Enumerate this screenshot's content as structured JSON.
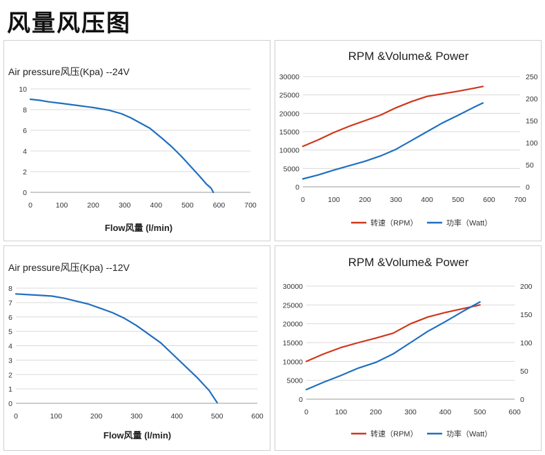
{
  "page_title": "风量风压图",
  "colors": {
    "rpm": "#d0361a",
    "power": "#1f6fc0",
    "grid": "#d9d9d9",
    "axis": "#999999"
  },
  "chart_data": [
    {
      "type": "line",
      "title": "Air pressure风压(Kpa)  --24V",
      "xlabel": "Flow风量  (l/min)",
      "xlim": [
        0,
        700
      ],
      "xticks": [
        0,
        100,
        200,
        300,
        400,
        500,
        600,
        700
      ],
      "ylim": [
        0,
        10
      ],
      "yticks": [
        0,
        2,
        4,
        6,
        8,
        10
      ],
      "series": [
        {
          "name": "Air pressure",
          "color": "#1f6fc0",
          "x": [
            0,
            30,
            60,
            100,
            150,
            200,
            250,
            290,
            320,
            350,
            380,
            400,
            420,
            450,
            480,
            510,
            540,
            560,
            575,
            582
          ],
          "y": [
            9.0,
            8.9,
            8.75,
            8.6,
            8.4,
            8.2,
            7.95,
            7.6,
            7.2,
            6.7,
            6.2,
            5.7,
            5.2,
            4.4,
            3.5,
            2.5,
            1.5,
            0.8,
            0.4,
            0.0
          ]
        }
      ]
    },
    {
      "type": "line",
      "title": "RPM &Volume& Power",
      "xlim": [
        0,
        700
      ],
      "xticks": [
        0,
        100,
        200,
        300,
        400,
        500,
        600,
        700
      ],
      "ylim": [
        0,
        30000
      ],
      "yticks": [
        0,
        5000,
        10000,
        15000,
        20000,
        25000,
        30000
      ],
      "y2lim": [
        0,
        250
      ],
      "y2ticks": [
        0,
        50,
        100,
        150,
        200,
        250
      ],
      "series": [
        {
          "name": "转速（RPM）",
          "color": "#d0361a",
          "axis": "left",
          "x": [
            0,
            50,
            100,
            150,
            200,
            250,
            300,
            350,
            400,
            450,
            500,
            550,
            580
          ],
          "y": [
            11000,
            12800,
            14800,
            16500,
            18000,
            19500,
            21500,
            23200,
            24600,
            25300,
            26000,
            26800,
            27300
          ]
        },
        {
          "name": "功率（Watt）",
          "color": "#1f6fc0",
          "axis": "right",
          "x": [
            0,
            50,
            100,
            150,
            200,
            250,
            300,
            350,
            400,
            450,
            500,
            550,
            580
          ],
          "y": [
            18,
            27,
            38,
            48,
            58,
            70,
            85,
            105,
            125,
            145,
            162,
            180,
            190
          ]
        }
      ]
    },
    {
      "type": "line",
      "title": "Air pressure风压(Kpa)  --12V",
      "xlabel": "Flow风量  (l/min)",
      "xlim": [
        0,
        600
      ],
      "xticks": [
        0,
        100,
        200,
        300,
        400,
        500,
        600
      ],
      "ylim": [
        0,
        8
      ],
      "yticks": [
        0,
        1,
        2,
        3,
        4,
        5,
        6,
        7,
        8
      ],
      "series": [
        {
          "name": "Air pressure",
          "color": "#1f6fc0",
          "x": [
            0,
            30,
            60,
            90,
            120,
            150,
            180,
            210,
            240,
            270,
            300,
            330,
            360,
            390,
            420,
            450,
            480,
            500
          ],
          "y": [
            7.6,
            7.55,
            7.5,
            7.45,
            7.3,
            7.1,
            6.9,
            6.6,
            6.3,
            5.9,
            5.4,
            4.8,
            4.2,
            3.4,
            2.6,
            1.8,
            0.9,
            0.05
          ]
        }
      ]
    },
    {
      "type": "line",
      "title": "RPM &Volume& Power",
      "xlim": [
        0,
        600
      ],
      "xticks": [
        0,
        100,
        200,
        300,
        400,
        500,
        600
      ],
      "ylim": [
        0,
        30000
      ],
      "yticks": [
        0,
        5000,
        10000,
        15000,
        20000,
        25000,
        30000
      ],
      "y2lim": [
        0,
        200
      ],
      "y2ticks": [
        0,
        50,
        100,
        150,
        200
      ],
      "series": [
        {
          "name": "转速（RPM）",
          "color": "#d0361a",
          "axis": "left",
          "x": [
            0,
            50,
            100,
            150,
            200,
            250,
            300,
            350,
            400,
            450,
            500
          ],
          "y": [
            10000,
            12000,
            13700,
            15000,
            16200,
            17500,
            20000,
            21800,
            23000,
            24000,
            25000
          ]
        },
        {
          "name": "功率（Watt）",
          "color": "#1f6fc0",
          "axis": "right",
          "x": [
            0,
            50,
            100,
            150,
            200,
            250,
            300,
            350,
            400,
            450,
            500
          ],
          "y": [
            17,
            30,
            42,
            55,
            65,
            80,
            100,
            120,
            137,
            155,
            172
          ]
        }
      ]
    }
  ]
}
